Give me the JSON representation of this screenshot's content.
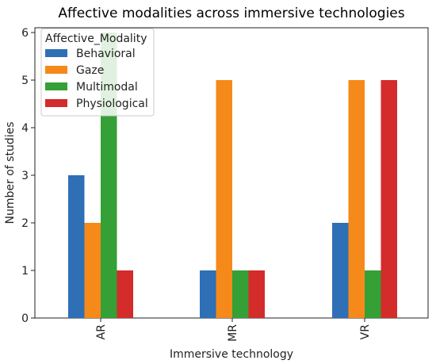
{
  "chart_data": {
    "type": "bar",
    "title": "Affective modalities across immersive technologies",
    "xlabel": "Immersive technology",
    "ylabel": "Number of studies",
    "categories": [
      "AR",
      "MR",
      "VR"
    ],
    "series": [
      {
        "name": "Behavioral",
        "color": "#2f6fb5",
        "values": [
          3,
          1,
          2
        ]
      },
      {
        "name": "Gaze",
        "color": "#f5891a",
        "values": [
          2,
          5,
          5
        ]
      },
      {
        "name": "Multimodal",
        "color": "#35a035",
        "values": [
          6,
          1,
          1
        ]
      },
      {
        "name": "Physiological",
        "color": "#d42b2b",
        "values": [
          1,
          1,
          5
        ]
      }
    ],
    "ylim": [
      0,
      6.1
    ],
    "yticks": [
      "0",
      "1",
      "2",
      "3",
      "4",
      "5",
      "6"
    ],
    "grid": false,
    "legend_title": "Affective_Modality",
    "legend_position": "top-left"
  }
}
